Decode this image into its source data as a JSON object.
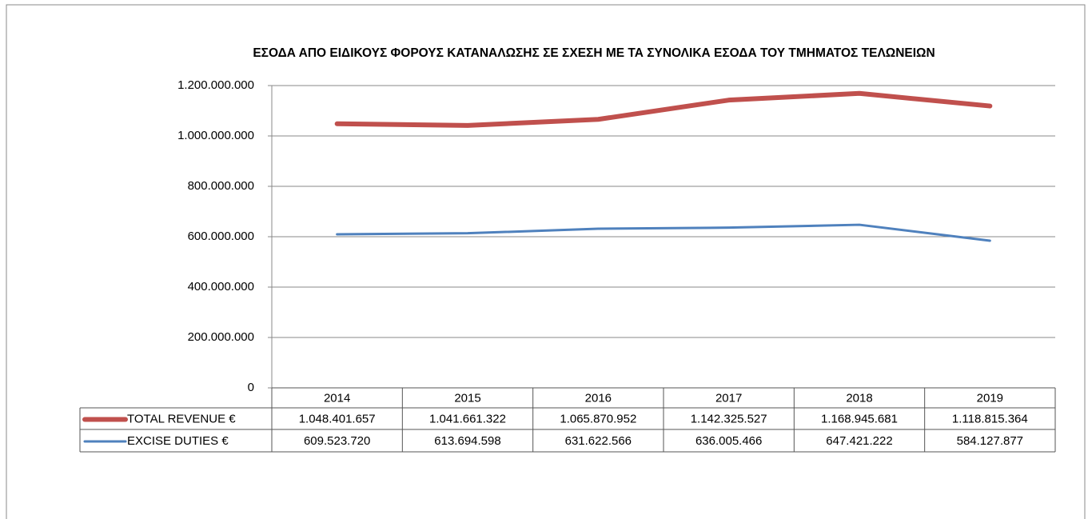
{
  "chart_data": {
    "type": "line",
    "title": "ΕΣΟΔΑ ΑΠΟ ΕΙΔΙΚΟΥΣ ΦΟΡΟΥΣ ΚΑΤΑΝΑΛΩΣΗΣ ΣΕ ΣΧΕΣΗ ΜΕ ΤΑ ΣΥΝΟΛΙΚΑ ΕΣΟΔΑ ΤΟΥ ΤΜΗΜΑΤΟΣ ΤΕΛΩΝΕΙΩΝ",
    "categories": [
      "2014",
      "2015",
      "2016",
      "2017",
      "2018",
      "2019"
    ],
    "series": [
      {
        "name": "TOTAL REVENUE €",
        "color": "#c0504d",
        "values": [
          1048401657,
          1041661322,
          1065870952,
          1142325527,
          1168945681,
          1118815364
        ],
        "value_labels": [
          "1.048.401.657",
          "1.041.661.322",
          "1.065.870.952",
          "1.142.325.527",
          "1.168.945.681",
          "1.118.815.364"
        ]
      },
      {
        "name": "EXCISE DUTIES €",
        "color": "#4f81bd",
        "values": [
          609523720,
          613694598,
          631622566,
          636005466,
          647421222,
          584127877
        ],
        "value_labels": [
          "609.523.720",
          "613.694.598",
          "631.622.566",
          "636.005.466",
          "647.421.222",
          "584.127.877"
        ]
      }
    ],
    "ylim": [
      0,
      1200000000
    ],
    "yticks": [
      0,
      {
        "value": 200000000,
        "label": "200.000.000"
      },
      {
        "value": 400000000,
        "label": "400.000.000"
      },
      {
        "value": 600000000,
        "label": "600.000.000"
      },
      {
        "value": 800000000,
        "label": "800.000.000"
      },
      {
        "value": 1000000000,
        "label": "1.000.000.000"
      },
      {
        "value": 1200000000,
        "label": "1.200.000.000"
      }
    ],
    "grid": true
  }
}
